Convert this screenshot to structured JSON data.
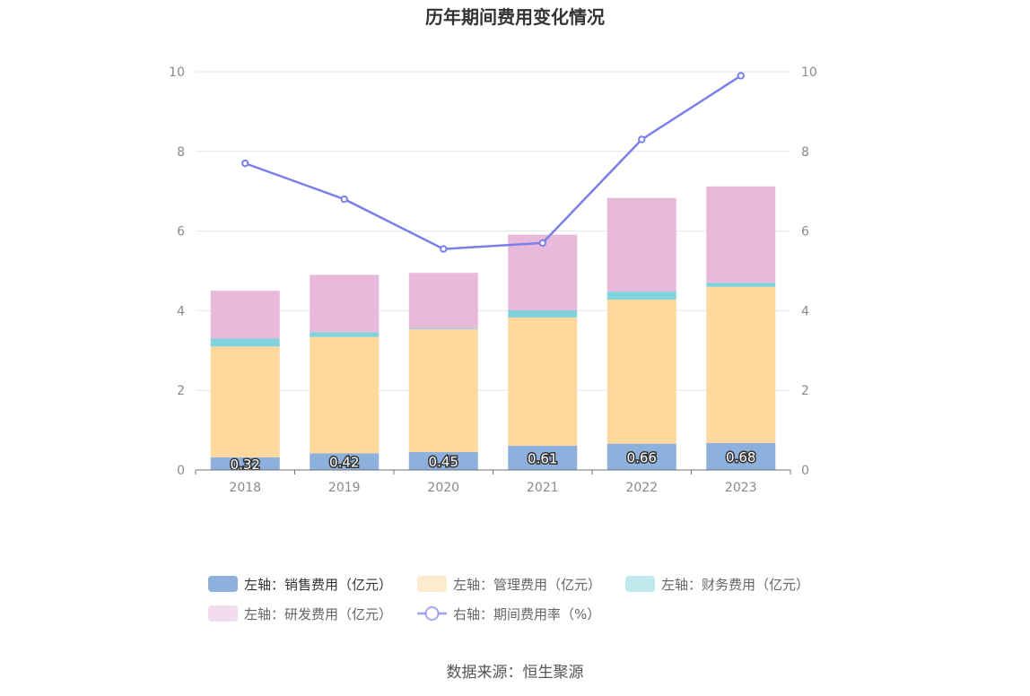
{
  "chart_data": {
    "type": "bar",
    "title": "历年期间费用变化情况",
    "categories": [
      "2018",
      "2019",
      "2020",
      "2021",
      "2022",
      "2023"
    ],
    "left_axis": {
      "ylim": [
        0,
        10
      ],
      "ticks": [
        "0",
        "2",
        "4",
        "6",
        "8",
        "10"
      ]
    },
    "right_axis": {
      "ylim": [
        0,
        10
      ],
      "ticks": [
        "0",
        "2",
        "4",
        "6",
        "8",
        "10"
      ]
    },
    "series": [
      {
        "name": "左轴：销售费用（亿元）",
        "type": "bar",
        "stack": true,
        "color": "#8eb0dc",
        "values": [
          0.32,
          0.42,
          0.45,
          0.61,
          0.66,
          0.68
        ],
        "labels": [
          "0.32",
          "0.42",
          "0.45",
          "0.61",
          "0.66",
          "0.68"
        ]
      },
      {
        "name": "左轴：管理费用（亿元）",
        "type": "bar",
        "stack": true,
        "color": "#fed89d",
        "values": [
          2.78,
          2.92,
          3.08,
          3.22,
          3.62,
          3.92
        ]
      },
      {
        "name": "左轴：财务费用（亿元）",
        "type": "bar",
        "stack": true,
        "color": "#80d3dc",
        "values": [
          0.2,
          0.12,
          0.02,
          0.18,
          0.2,
          0.1
        ]
      },
      {
        "name": "左轴：研发费用（亿元）",
        "type": "bar",
        "stack": true,
        "color": "#e8b9da",
        "values": [
          1.2,
          1.44,
          1.4,
          1.9,
          2.35,
          2.42
        ]
      },
      {
        "name": "右轴：期间费用率（%）",
        "type": "line",
        "axis": "right",
        "color": "#7b7fea",
        "values": [
          7.7,
          6.8,
          5.55,
          5.7,
          8.3,
          9.9
        ]
      }
    ],
    "legend_position": "bottom"
  },
  "source": "数据来源：恒生聚源"
}
